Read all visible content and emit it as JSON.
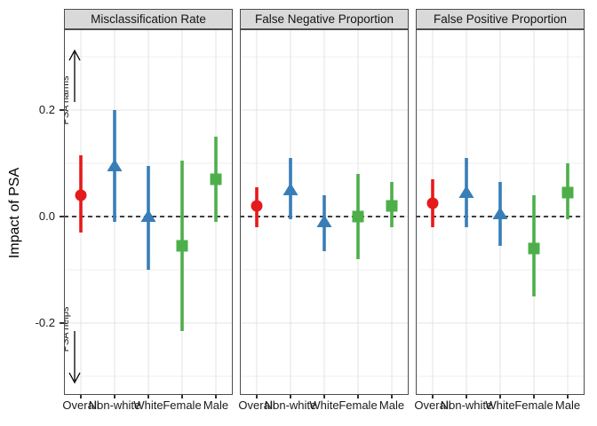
{
  "figure": {
    "background": "#ffffff",
    "strip_background": "#d9d9d9",
    "panel_border_color": "#4d4d4d",
    "grid_color": "#e3e3e3"
  },
  "chart_data": {
    "type": "scatter",
    "subtype": "pointrange-facets",
    "title": "",
    "ylabel": "Impact of PSA",
    "xlabel": "",
    "ylim": [
      -0.335,
      0.352
    ],
    "grid": true,
    "legend": "none",
    "reference_line": 0,
    "yticks": [
      {
        "label": "0.2",
        "value": 0.2
      },
      {
        "label": "0.0",
        "value": 0.0
      },
      {
        "label": "-0.2",
        "value": -0.2
      }
    ],
    "minor_gridlines": [
      0.3,
      0.1,
      -0.1,
      -0.3
    ],
    "categories": [
      "Overall",
      "Non-white",
      "White",
      "Female",
      "Male"
    ],
    "colors": {
      "overall": "#E41A1C",
      "race": "#377EB8",
      "sex": "#4DAF4A"
    },
    "panels": [
      {
        "title": "Misclassification Rate",
        "points": [
          {
            "group": "Overall",
            "marker": "circle",
            "color": "#E41A1C",
            "estimate": 0.04,
            "lower": -0.03,
            "upper": 0.115
          },
          {
            "group": "Non-white",
            "marker": "triangle",
            "color": "#377EB8",
            "estimate": 0.095,
            "lower": -0.01,
            "upper": 0.2
          },
          {
            "group": "White",
            "marker": "triangle",
            "color": "#377EB8",
            "estimate": 0.0,
            "lower": -0.1,
            "upper": 0.095
          },
          {
            "group": "Female",
            "marker": "square",
            "color": "#4DAF4A",
            "estimate": -0.055,
            "lower": -0.215,
            "upper": 0.105
          },
          {
            "group": "Male",
            "marker": "square",
            "color": "#4DAF4A",
            "estimate": 0.07,
            "lower": -0.01,
            "upper": 0.15
          }
        ],
        "annotations": [
          {
            "text": "PSA harms",
            "direction": "up"
          },
          {
            "text": "PSA helps",
            "direction": "down"
          }
        ]
      },
      {
        "title": "False Negative Proportion",
        "points": [
          {
            "group": "Overall",
            "marker": "circle",
            "color": "#E41A1C",
            "estimate": 0.02,
            "lower": -0.02,
            "upper": 0.055
          },
          {
            "group": "Non-white",
            "marker": "triangle",
            "color": "#377EB8",
            "estimate": 0.05,
            "lower": -0.005,
            "upper": 0.11
          },
          {
            "group": "White",
            "marker": "triangle",
            "color": "#377EB8",
            "estimate": -0.01,
            "lower": -0.065,
            "upper": 0.04
          },
          {
            "group": "Female",
            "marker": "square",
            "color": "#4DAF4A",
            "estimate": 0.0,
            "lower": -0.08,
            "upper": 0.08
          },
          {
            "group": "Male",
            "marker": "square",
            "color": "#4DAF4A",
            "estimate": 0.02,
            "lower": -0.02,
            "upper": 0.065
          }
        ],
        "annotations": []
      },
      {
        "title": "False Positive Proportion",
        "points": [
          {
            "group": "Overall",
            "marker": "circle",
            "color": "#E41A1C",
            "estimate": 0.025,
            "lower": -0.02,
            "upper": 0.07
          },
          {
            "group": "Non-white",
            "marker": "triangle",
            "color": "#377EB8",
            "estimate": 0.045,
            "lower": -0.02,
            "upper": 0.11
          },
          {
            "group": "White",
            "marker": "triangle",
            "color": "#377EB8",
            "estimate": 0.005,
            "lower": -0.055,
            "upper": 0.065
          },
          {
            "group": "Female",
            "marker": "square",
            "color": "#4DAF4A",
            "estimate": -0.06,
            "lower": -0.15,
            "upper": 0.04
          },
          {
            "group": "Male",
            "marker": "square",
            "color": "#4DAF4A",
            "estimate": 0.045,
            "lower": -0.005,
            "upper": 0.1
          }
        ],
        "annotations": []
      }
    ]
  }
}
